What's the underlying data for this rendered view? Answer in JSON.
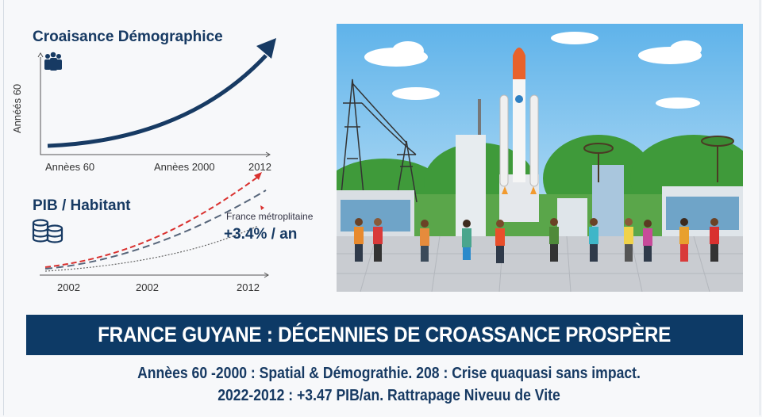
{
  "population_chart": {
    "title": "Croaisance Démographice",
    "y_axis_label": "Annéés 60",
    "x_ticks": [
      "Annèes 60",
      "Annèes 2000",
      "2012"
    ],
    "icon": "people-icon"
  },
  "gdp_chart": {
    "title": "PIB / Habitant",
    "x_ticks": [
      "2002",
      "2002",
      "2012"
    ],
    "series_label": "France métroplitaine",
    "growth_rate": "+3.4% / an",
    "icon": "coins-icon",
    "colors": {
      "guyane": "#d9312f",
      "france": "#56657a",
      "trend": "#666666"
    }
  },
  "banner": {
    "title": "FRANCE GUYANE : DÉCENNIES DE CROASSANCE PROSPÈRE",
    "color": "#0d3a66"
  },
  "summary": {
    "line1": "Annèes 60 -2000 : Spatial & Démograthie.  208 : Crise quaquasi sans impact.",
    "line2": "2022-2012 : +3.47 PIB/an.  Rattrapage Niveuu de Vite"
  }
}
